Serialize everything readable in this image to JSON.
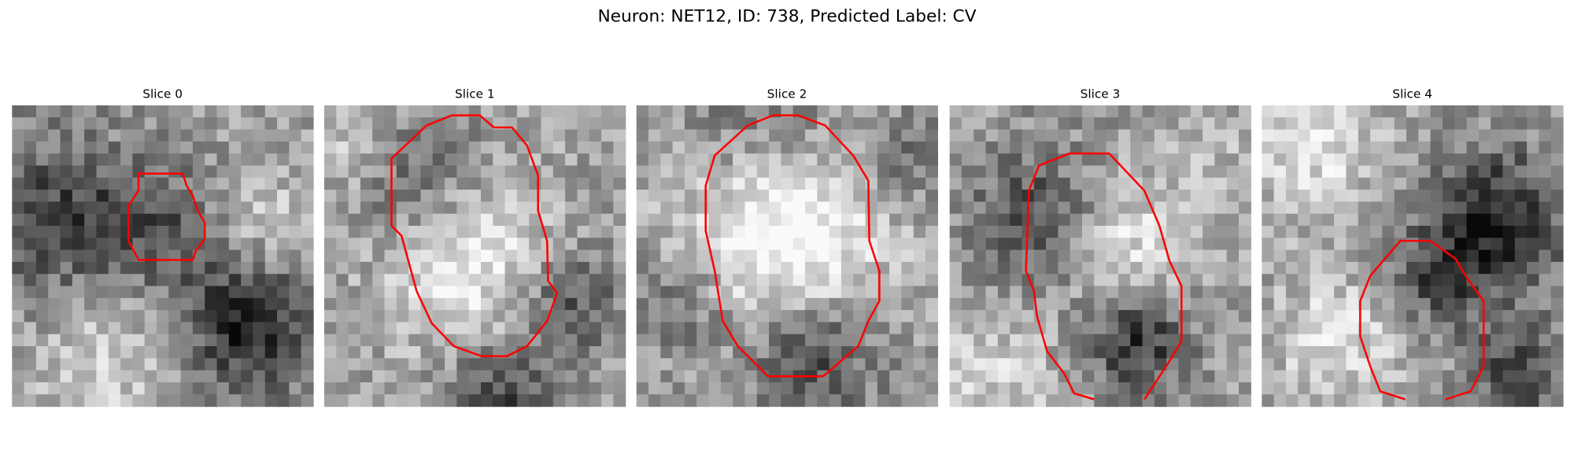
{
  "header": {
    "title": "Neuron: NET12, ID: 738, Predicted Label: CV"
  },
  "panels": [
    {
      "title": "Slice 0"
    },
    {
      "title": "Slice 1"
    },
    {
      "title": "Slice 2"
    },
    {
      "title": "Slice 3"
    },
    {
      "title": "Slice 4"
    }
  ]
}
